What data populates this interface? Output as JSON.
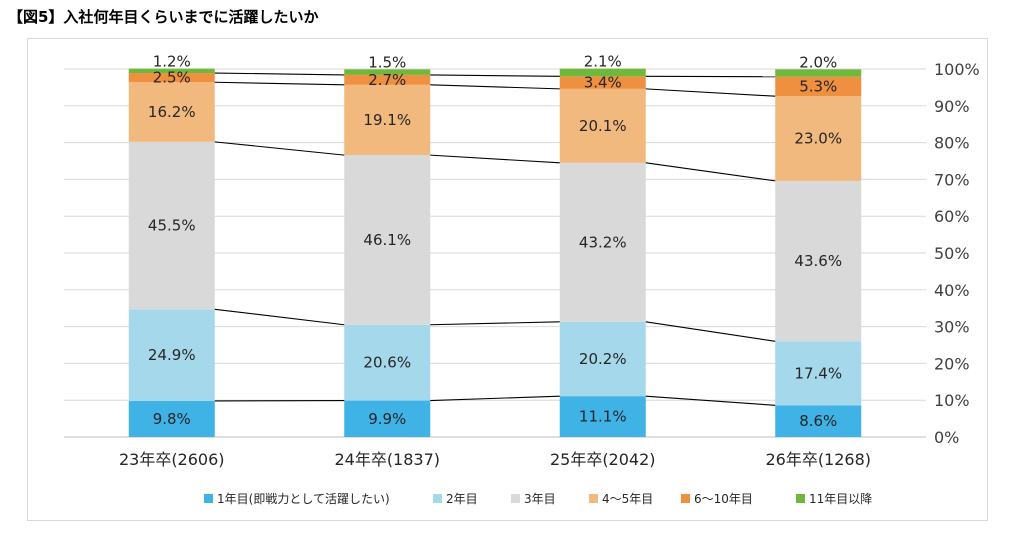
{
  "title": "【図5】入社何年目くらいまでに活躍したいか",
  "chart_data": {
    "type": "bar",
    "stacked": true,
    "percent": true,
    "categories": [
      "23年卒(2606)",
      "24年卒(1837)",
      "25年卒(2042)",
      "26年卒(1268)"
    ],
    "series": [
      {
        "name": "1年目(即戦力として活躍したい)",
        "values": [
          9.8,
          9.9,
          11.1,
          8.6
        ],
        "labels": [
          "9.8%",
          "9.9%",
          "11.1%",
          "8.6%"
        ],
        "color": "#3fb2e6"
      },
      {
        "name": "2年目",
        "values": [
          24.9,
          20.6,
          20.2,
          17.4
        ],
        "labels": [
          "24.9%",
          "20.6%",
          "20.2%",
          "17.4%"
        ],
        "color": "#a6d8ec"
      },
      {
        "name": "3年目",
        "values": [
          45.5,
          46.1,
          43.2,
          43.6
        ],
        "labels": [
          "45.5%",
          "46.1%",
          "43.2%",
          "43.6%"
        ],
        "color": "#d9d9d9"
      },
      {
        "name": "4～5年目",
        "values": [
          16.2,
          19.1,
          20.1,
          23.0
        ],
        "labels": [
          "16.2%",
          "19.1%",
          "20.1%",
          "23.0%"
        ],
        "color": "#f1b97d"
      },
      {
        "name": "6～10年目",
        "values": [
          2.5,
          2.7,
          3.4,
          5.3
        ],
        "labels": [
          "2.5%",
          "2.7%",
          "3.4%",
          "5.3%"
        ],
        "color": "#ef9040"
      },
      {
        "name": "11年目以降",
        "values": [
          1.2,
          1.5,
          2.1,
          2.0
        ],
        "labels": [
          "1.2%",
          "1.5%",
          "2.1%",
          "2.0%"
        ],
        "color": "#6fb83c"
      }
    ],
    "yaxis": {
      "position": "right",
      "min": 0,
      "max": 100,
      "ticks": [
        "0%",
        "10%",
        "20%",
        "30%",
        "40%",
        "50%",
        "60%",
        "70%",
        "80%",
        "90%",
        "100%"
      ]
    },
    "gridlines": true,
    "series_connector_lines": true,
    "legend_position": "bottom"
  }
}
